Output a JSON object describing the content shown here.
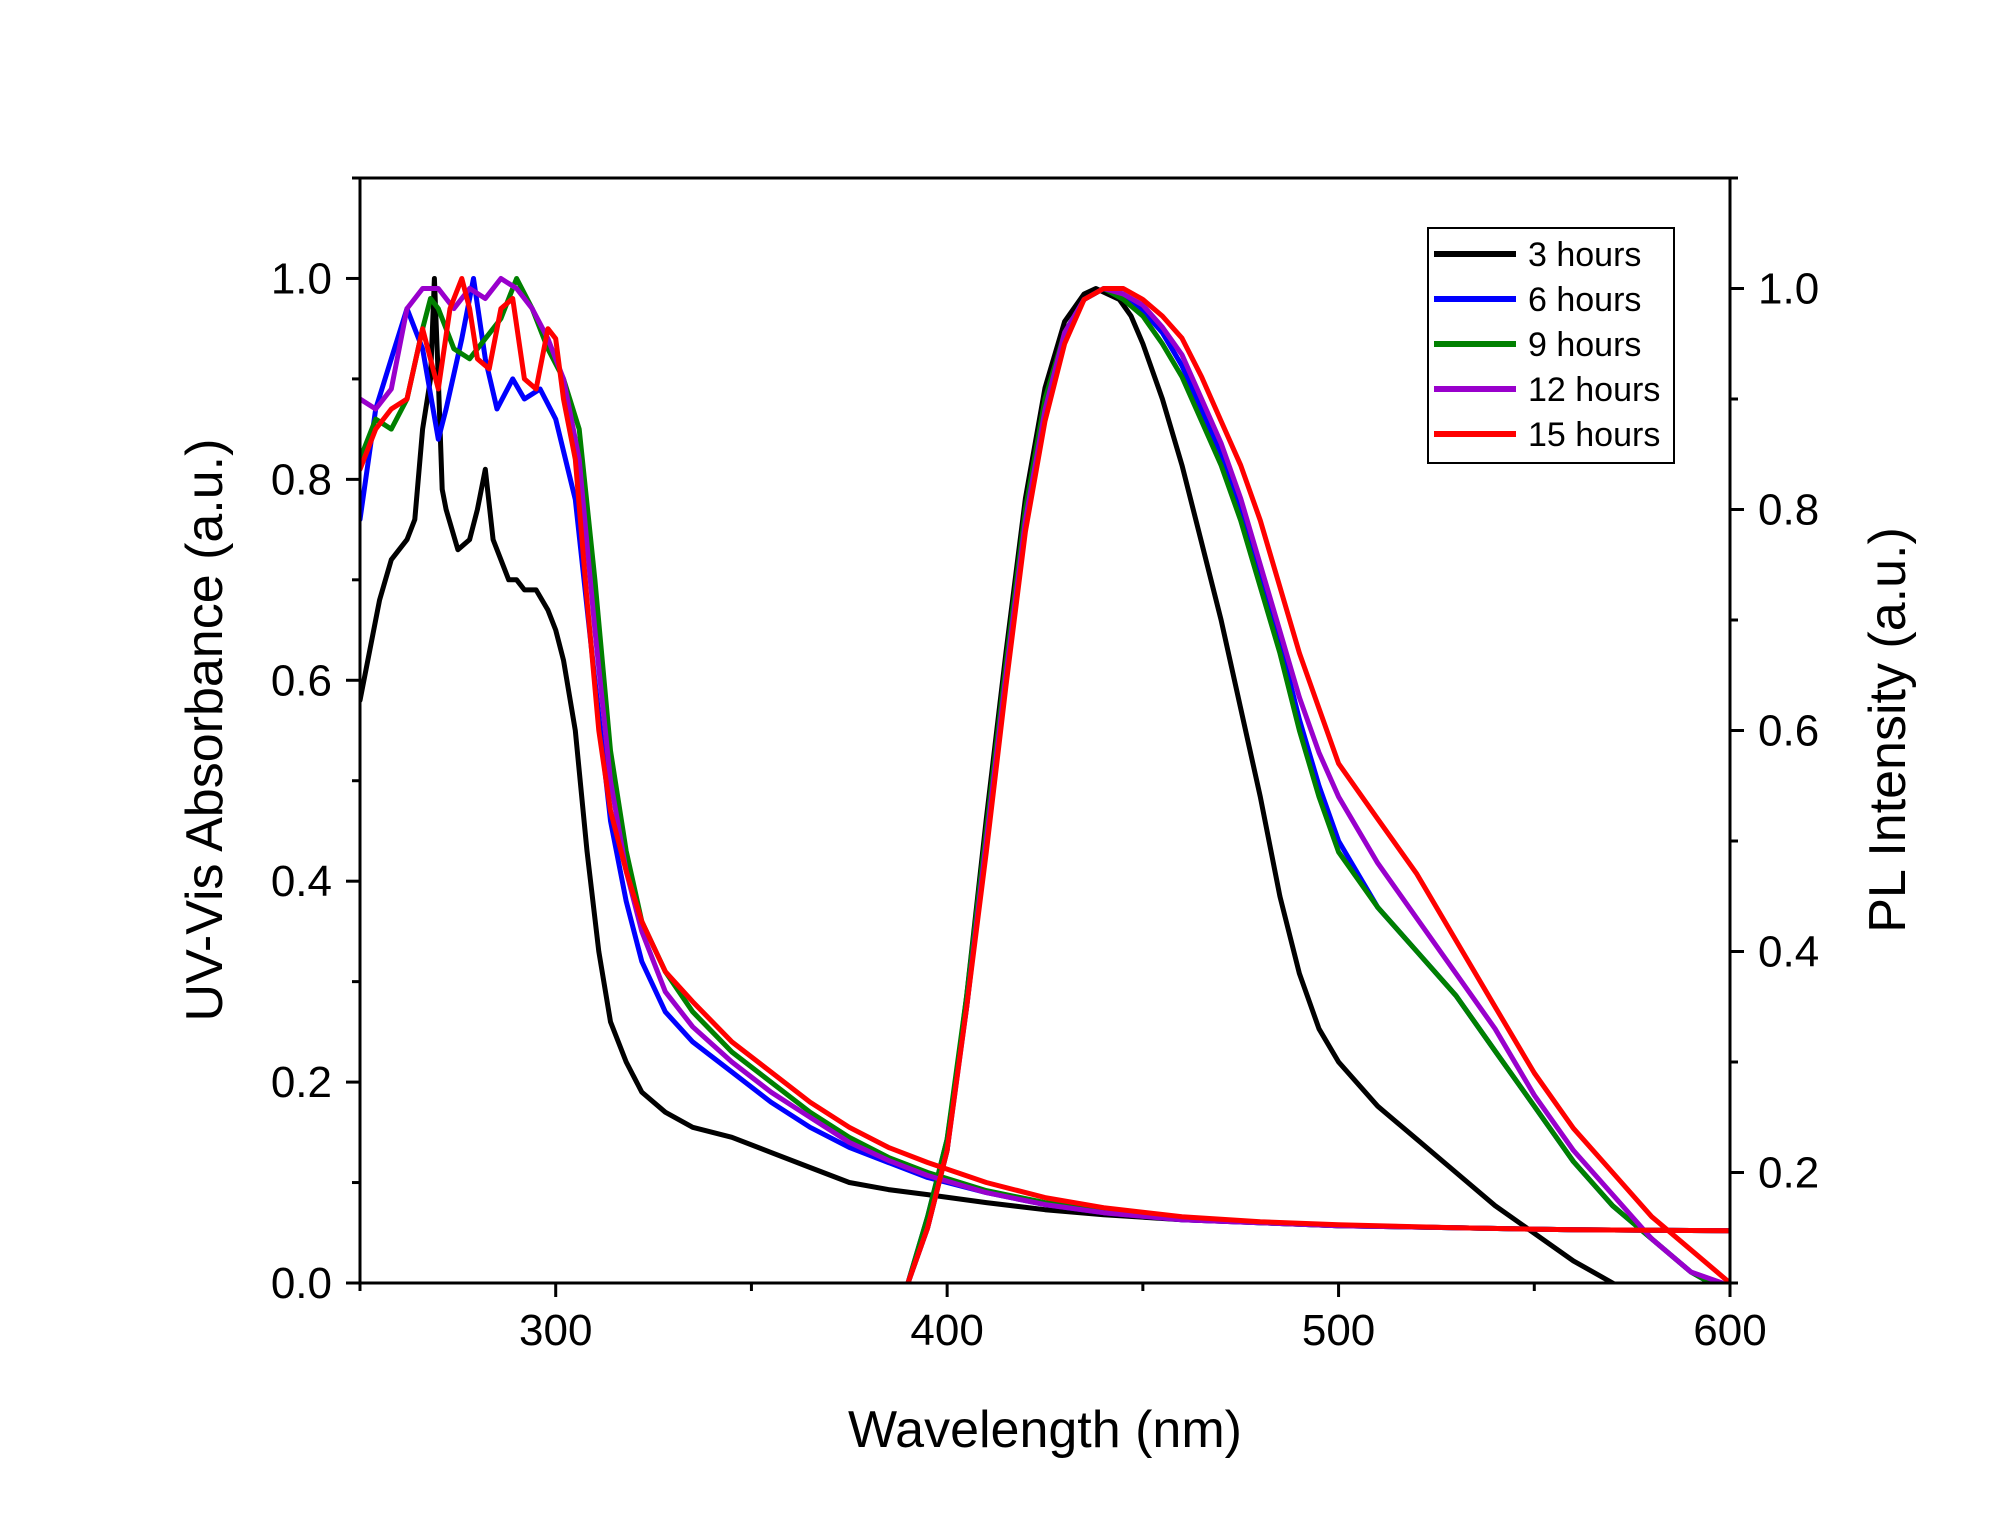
{
  "chart_data": {
    "type": "line",
    "title": "",
    "xlabel": "Wavelength (nm)",
    "ylabel_left": "UV-Vis Absorbance (a.u.)",
    "ylabel_right": "PL Intensity (a.u.)",
    "xlim": [
      250,
      600
    ],
    "ylim_left": [
      0,
      1.1
    ],
    "ylim_right": [
      0.1,
      1.1
    ],
    "x_ticks": [
      300,
      400,
      500,
      600
    ],
    "x_tick_labels": [
      "300",
      "400",
      "500",
      "600"
    ],
    "y_left_ticks": [
      0.0,
      0.2,
      0.4,
      0.6,
      0.8,
      1.0
    ],
    "y_left_tick_labels": [
      "0.0",
      "0.2",
      "0.4",
      "0.6",
      "0.8",
      "1.0"
    ],
    "y_right_ticks": [
      0.2,
      0.4,
      0.6,
      0.8,
      1.0
    ],
    "y_right_tick_labels": [
      "0.2",
      "0.4",
      "0.6",
      "0.8",
      "1.0"
    ],
    "grid": false,
    "legend_position": "top-right",
    "series": [
      {
        "name": "3 hours",
        "color": "#000000",
        "absorbance": {
          "x": [
            250,
            255,
            258,
            262,
            264,
            266,
            268,
            269,
            270,
            271,
            272,
            275,
            278,
            280,
            282,
            284,
            286,
            288,
            290,
            292,
            295,
            298,
            300,
            302,
            305,
            308,
            311,
            314,
            318,
            322,
            328,
            335,
            345,
            355,
            365,
            375,
            385,
            395,
            410,
            425,
            440,
            460,
            480,
            500,
            530,
            560,
            600
          ],
          "y": [
            0.58,
            0.68,
            0.72,
            0.74,
            0.76,
            0.85,
            0.9,
            1.0,
            0.9,
            0.79,
            0.77,
            0.73,
            0.74,
            0.77,
            0.81,
            0.74,
            0.72,
            0.7,
            0.7,
            0.69,
            0.69,
            0.67,
            0.65,
            0.62,
            0.55,
            0.43,
            0.33,
            0.26,
            0.22,
            0.19,
            0.17,
            0.155,
            0.145,
            0.13,
            0.115,
            0.1,
            0.093,
            0.088,
            0.08,
            0.073,
            0.068,
            0.063,
            0.06,
            0.057,
            0.055,
            0.053,
            0.052
          ]
        },
        "pl": {
          "x": [
            390,
            395,
            400,
            405,
            410,
            415,
            420,
            425,
            430,
            435,
            438,
            441,
            444,
            447,
            450,
            455,
            460,
            465,
            470,
            475,
            480,
            485,
            490,
            495,
            500,
            510,
            520,
            530,
            540,
            550,
            560,
            570,
            575
          ],
          "y": [
            0.1,
            0.15,
            0.22,
            0.36,
            0.52,
            0.67,
            0.81,
            0.91,
            0.97,
            0.995,
            1.0,
            0.995,
            0.99,
            0.975,
            0.95,
            0.9,
            0.84,
            0.77,
            0.7,
            0.62,
            0.54,
            0.45,
            0.38,
            0.33,
            0.3,
            0.26,
            0.23,
            0.2,
            0.17,
            0.145,
            0.12,
            0.1,
            0.09
          ]
        }
      },
      {
        "name": "6 hours",
        "color": "#0000ff",
        "absorbance": {
          "x": [
            250,
            254,
            258,
            262,
            266,
            270,
            272,
            276,
            279,
            282,
            285,
            289,
            292,
            296,
            300,
            305,
            310,
            314,
            318,
            322,
            328,
            335,
            345,
            355,
            365,
            375,
            385,
            395,
            410,
            425,
            440,
            460,
            480,
            500,
            530,
            560,
            600
          ],
          "y": [
            0.76,
            0.87,
            0.92,
            0.97,
            0.93,
            0.84,
            0.87,
            0.94,
            1.0,
            0.92,
            0.87,
            0.9,
            0.88,
            0.89,
            0.86,
            0.78,
            0.6,
            0.46,
            0.38,
            0.32,
            0.27,
            0.24,
            0.21,
            0.18,
            0.155,
            0.135,
            0.12,
            0.105,
            0.09,
            0.078,
            0.07,
            0.063,
            0.06,
            0.057,
            0.055,
            0.053,
            0.052
          ]
        },
        "pl": {
          "x": [
            390,
            395,
            400,
            405,
            410,
            415,
            420,
            425,
            430,
            435,
            440,
            445,
            450,
            455,
            460,
            465,
            470,
            475,
            480,
            485,
            490,
            495,
            500,
            510,
            520,
            530,
            540,
            550,
            560,
            570,
            580,
            590,
            595
          ],
          "y": [
            0.1,
            0.16,
            0.23,
            0.35,
            0.5,
            0.65,
            0.79,
            0.89,
            0.96,
            0.99,
            1.0,
            0.995,
            0.98,
            0.96,
            0.93,
            0.89,
            0.85,
            0.8,
            0.74,
            0.68,
            0.61,
            0.55,
            0.5,
            0.44,
            0.4,
            0.36,
            0.31,
            0.26,
            0.21,
            0.17,
            0.14,
            0.11,
            0.1
          ]
        }
      },
      {
        "name": "9 hours",
        "color": "#008000",
        "absorbance": {
          "x": [
            250,
            254,
            258,
            262,
            266,
            268,
            270,
            274,
            278,
            282,
            286,
            290,
            294,
            298,
            302,
            306,
            310,
            314,
            318,
            322,
            328,
            335,
            345,
            355,
            365,
            375,
            385,
            395,
            410,
            425,
            440,
            460,
            480,
            500,
            530,
            560,
            600
          ],
          "y": [
            0.82,
            0.86,
            0.85,
            0.88,
            0.95,
            0.98,
            0.97,
            0.93,
            0.92,
            0.94,
            0.96,
            1.0,
            0.97,
            0.93,
            0.9,
            0.85,
            0.7,
            0.53,
            0.43,
            0.36,
            0.31,
            0.27,
            0.23,
            0.2,
            0.17,
            0.145,
            0.125,
            0.11,
            0.092,
            0.08,
            0.072,
            0.064,
            0.06,
            0.057,
            0.055,
            0.053,
            0.052
          ]
        },
        "pl": {
          "x": [
            390,
            395,
            400,
            405,
            410,
            415,
            420,
            425,
            430,
            435,
            440,
            445,
            450,
            455,
            460,
            465,
            470,
            475,
            480,
            485,
            490,
            495,
            500,
            510,
            520,
            530,
            540,
            550,
            560,
            570,
            580,
            590,
            595
          ],
          "y": [
            0.1,
            0.16,
            0.23,
            0.36,
            0.51,
            0.66,
            0.8,
            0.9,
            0.96,
            0.99,
            1.0,
            0.99,
            0.975,
            0.95,
            0.92,
            0.88,
            0.84,
            0.79,
            0.73,
            0.67,
            0.6,
            0.54,
            0.49,
            0.44,
            0.4,
            0.36,
            0.31,
            0.26,
            0.21,
            0.17,
            0.14,
            0.11,
            0.1
          ]
        }
      },
      {
        "name": "12 hours",
        "color": "#9900cc",
        "absorbance": {
          "x": [
            250,
            254,
            258,
            262,
            266,
            270,
            274,
            278,
            282,
            286,
            290,
            294,
            298,
            302,
            306,
            310,
            314,
            318,
            322,
            328,
            335,
            345,
            355,
            365,
            375,
            385,
            395,
            410,
            425,
            440,
            460,
            480,
            500,
            530,
            560,
            600
          ],
          "y": [
            0.88,
            0.87,
            0.89,
            0.97,
            0.99,
            0.99,
            0.97,
            0.99,
            0.98,
            1.0,
            0.99,
            0.97,
            0.94,
            0.9,
            0.82,
            0.65,
            0.5,
            0.41,
            0.35,
            0.29,
            0.255,
            0.22,
            0.19,
            0.165,
            0.14,
            0.122,
            0.107,
            0.09,
            0.078,
            0.07,
            0.063,
            0.06,
            0.057,
            0.055,
            0.053,
            0.052
          ]
        },
        "pl": {
          "x": [
            390,
            395,
            400,
            405,
            410,
            415,
            420,
            425,
            430,
            435,
            440,
            445,
            450,
            455,
            460,
            465,
            470,
            475,
            480,
            485,
            490,
            495,
            500,
            510,
            520,
            530,
            540,
            550,
            560,
            570,
            580,
            590,
            598
          ],
          "y": [
            0.1,
            0.15,
            0.22,
            0.35,
            0.5,
            0.65,
            0.79,
            0.89,
            0.96,
            0.99,
            1.0,
            0.995,
            0.985,
            0.965,
            0.94,
            0.9,
            0.86,
            0.81,
            0.75,
            0.69,
            0.63,
            0.58,
            0.54,
            0.48,
            0.43,
            0.38,
            0.33,
            0.27,
            0.22,
            0.18,
            0.14,
            0.11,
            0.1
          ]
        }
      },
      {
        "name": "15 hours",
        "color": "#ff0000",
        "absorbance": {
          "x": [
            250,
            254,
            258,
            262,
            266,
            270,
            273,
            276,
            278,
            280,
            283,
            286,
            289,
            292,
            295,
            298,
            300,
            302,
            305,
            308,
            311,
            314,
            318,
            322,
            328,
            335,
            345,
            355,
            365,
            375,
            385,
            395,
            410,
            425,
            440,
            460,
            480,
            500,
            530,
            560,
            600
          ],
          "y": [
            0.81,
            0.85,
            0.87,
            0.88,
            0.95,
            0.89,
            0.97,
            1.0,
            0.97,
            0.92,
            0.91,
            0.97,
            0.98,
            0.9,
            0.89,
            0.95,
            0.94,
            0.88,
            0.82,
            0.68,
            0.55,
            0.47,
            0.41,
            0.36,
            0.31,
            0.28,
            0.24,
            0.21,
            0.18,
            0.155,
            0.135,
            0.12,
            0.1,
            0.085,
            0.075,
            0.066,
            0.061,
            0.058,
            0.055,
            0.053,
            0.052
          ]
        },
        "pl": {
          "x": [
            390,
            395,
            400,
            405,
            410,
            415,
            420,
            425,
            430,
            435,
            440,
            445,
            450,
            455,
            460,
            465,
            470,
            475,
            480,
            485,
            490,
            495,
            500,
            510,
            520,
            530,
            540,
            550,
            560,
            570,
            580,
            590,
            600
          ],
          "y": [
            0.1,
            0.15,
            0.22,
            0.35,
            0.49,
            0.64,
            0.78,
            0.88,
            0.95,
            0.99,
            1.0,
            1.0,
            0.99,
            0.975,
            0.955,
            0.92,
            0.88,
            0.84,
            0.79,
            0.73,
            0.67,
            0.62,
            0.57,
            0.52,
            0.47,
            0.41,
            0.35,
            0.29,
            0.24,
            0.2,
            0.16,
            0.13,
            0.1
          ]
        }
      }
    ]
  }
}
